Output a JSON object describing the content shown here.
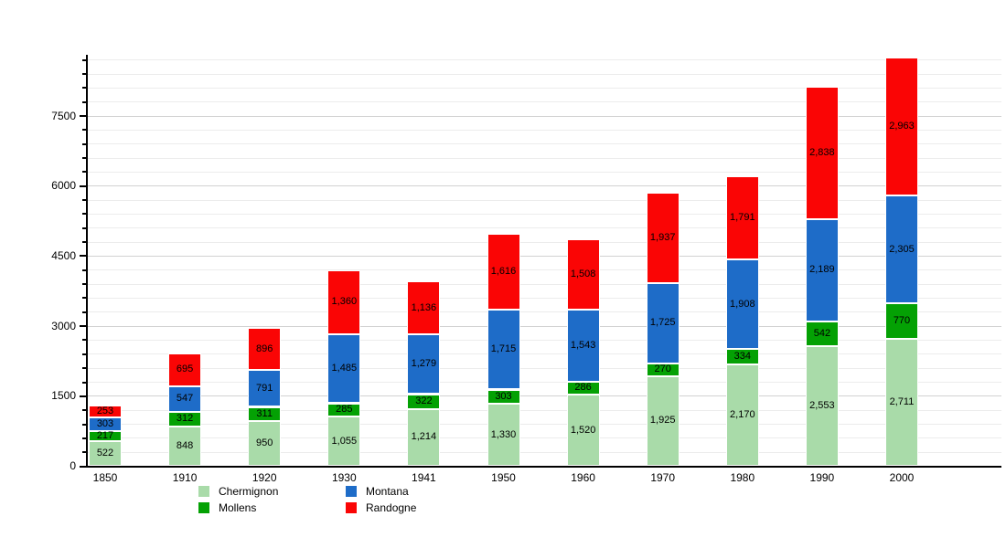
{
  "chart_data": {
    "type": "bar",
    "stacked": true,
    "title": "",
    "xlabel": "",
    "ylabel": "",
    "categories": [
      "1850",
      "1910",
      "1920",
      "1930",
      "1941",
      "1950",
      "1960",
      "1970",
      "1980",
      "1990",
      "2000"
    ],
    "series": [
      {
        "name": "Chermignon",
        "color": "#a9dba9",
        "values": [
          522,
          848,
          950,
          1055,
          1214,
          1330,
          1520,
          1925,
          2170,
          2553,
          2711
        ]
      },
      {
        "name": "Mollens",
        "color": "#04a104",
        "values": [
          217,
          312,
          311,
          285,
          322,
          303,
          286,
          270,
          334,
          542,
          770
        ]
      },
      {
        "name": "Montana",
        "color": "#1e6cc8",
        "values": [
          303,
          547,
          791,
          1485,
          1279,
          1715,
          1543,
          1725,
          1908,
          2189,
          2305
        ]
      },
      {
        "name": "Randogne",
        "color": "#fa0505",
        "values": [
          253,
          695,
          896,
          1360,
          1136,
          1616,
          1508,
          1937,
          1791,
          2838,
          2963
        ]
      }
    ],
    "ylim": [
      0,
      8800
    ],
    "yticks": [
      0,
      1500,
      3000,
      4500,
      6000,
      7500
    ],
    "ytick_labels": [
      "0",
      "1500",
      "3000",
      "4500",
      "6000",
      "7500"
    ],
    "minor_gridline_step": 300,
    "major_gridline_step": 1500,
    "grid": true,
    "legend_position": "bottom",
    "legend_columns": [
      [
        "Chermignon",
        "Mollens"
      ],
      [
        "Montana",
        "Randogne"
      ]
    ],
    "value_labels": "on-segment, thousands-separated"
  },
  "colors": {
    "background": "#ffffff",
    "axis": "#000000",
    "gridline_minor": "#ececec",
    "gridline_major": "#d2d2d2",
    "label_text": "#000000"
  }
}
